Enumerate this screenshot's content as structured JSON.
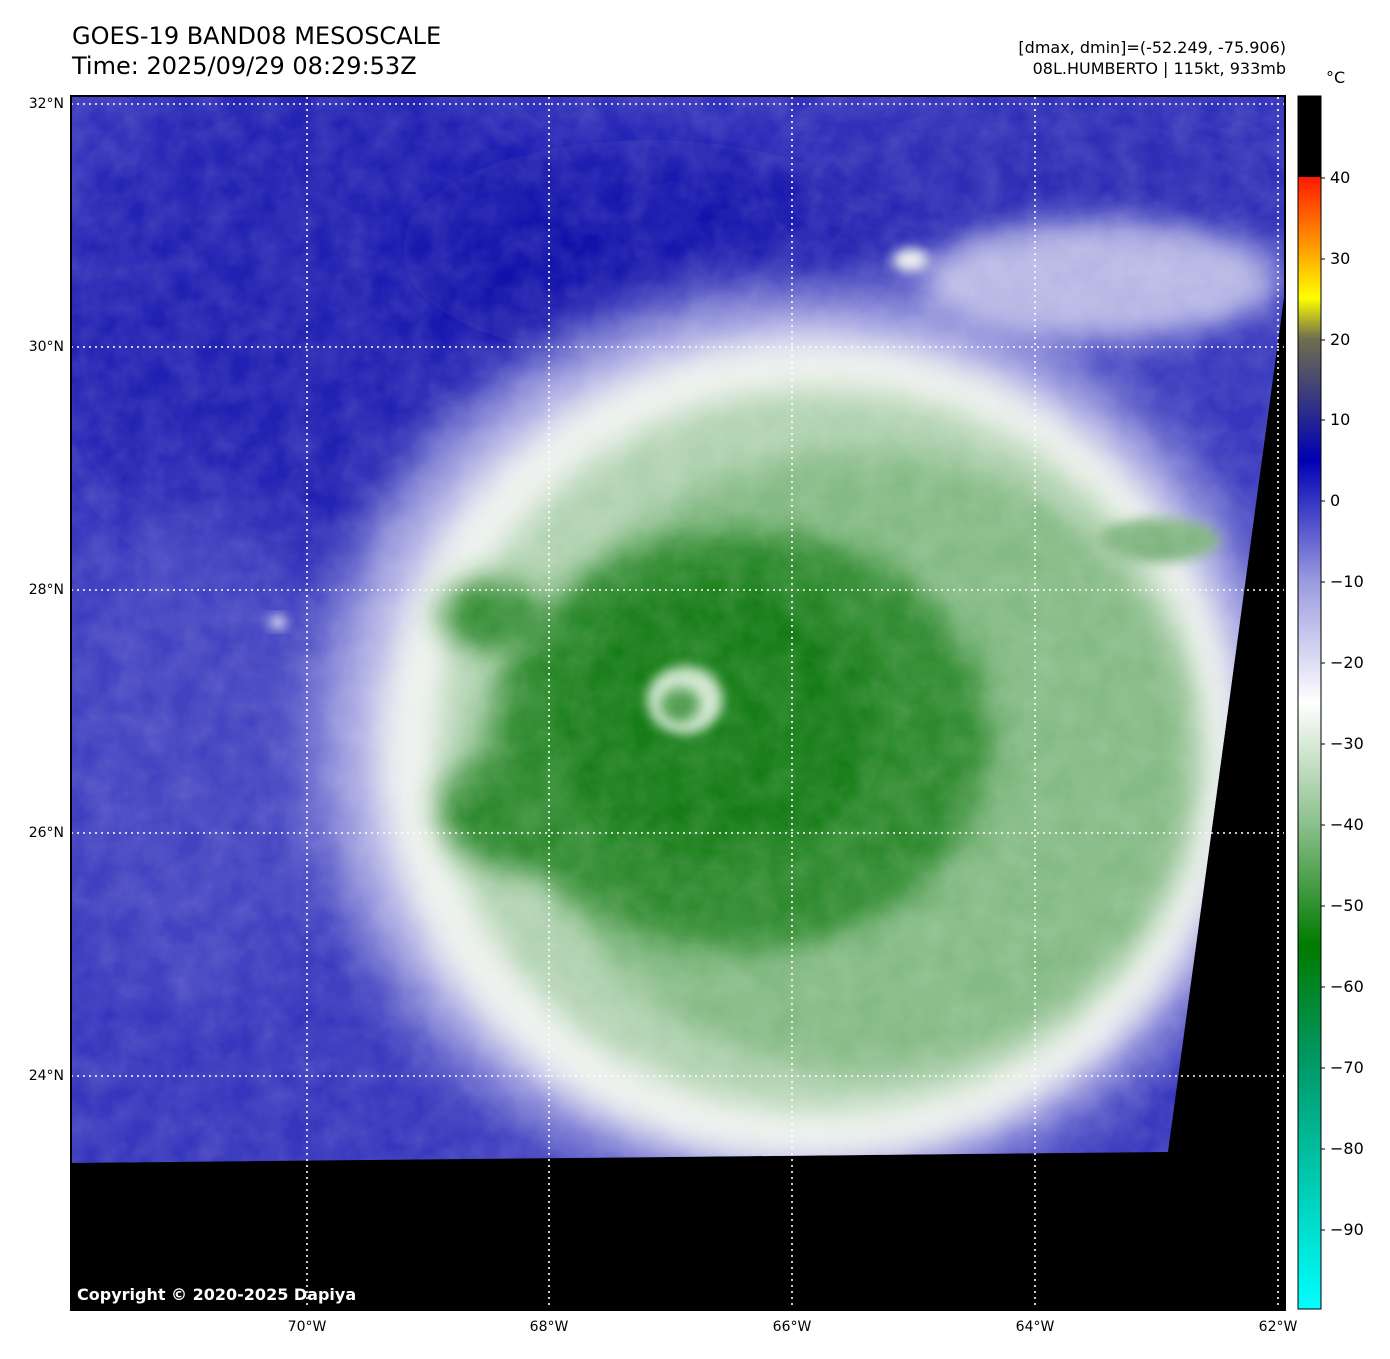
{
  "header": {
    "title_line1": "GOES-19 BAND08 MESOSCALE",
    "title_line2": "Time: 2025/09/29 08:29:53Z",
    "info_line1": "[dmax, dmin]=(-52.249, -75.906)",
    "info_line2": "08L.HUMBERTO | 115kt, 933mb"
  },
  "map": {
    "lat_labels": [
      "32°N",
      "30°N",
      "28°N",
      "26°N",
      "24°N"
    ],
    "lon_labels": [
      "70°W",
      "68°W",
      "66°W",
      "64°W",
      "62°W"
    ],
    "grid_style": "dotted white",
    "storm_name": "08L.HUMBERTO",
    "copyright": "Copyright © 2020-2025 Dapiya"
  },
  "colorbar": {
    "unit": "°C",
    "ticks": [
      "40",
      "30",
      "20",
      "10",
      "0",
      "−10",
      "−20",
      "−30",
      "−40",
      "−50",
      "−60",
      "−70",
      "−80",
      "−90"
    ],
    "range": [
      -100,
      50
    ],
    "colors": {
      "warm": "#000000",
      "zero": "#ff1a00",
      "minus10": "#ffb000",
      "minus15": "#ffff00",
      "minus20": "#6e6e4e",
      "minus30": "#0000b4",
      "minus40": "#c8c8f0",
      "minus50": "#ffffff",
      "minus70": "#007a00",
      "minus100": "#00ffff"
    }
  }
}
